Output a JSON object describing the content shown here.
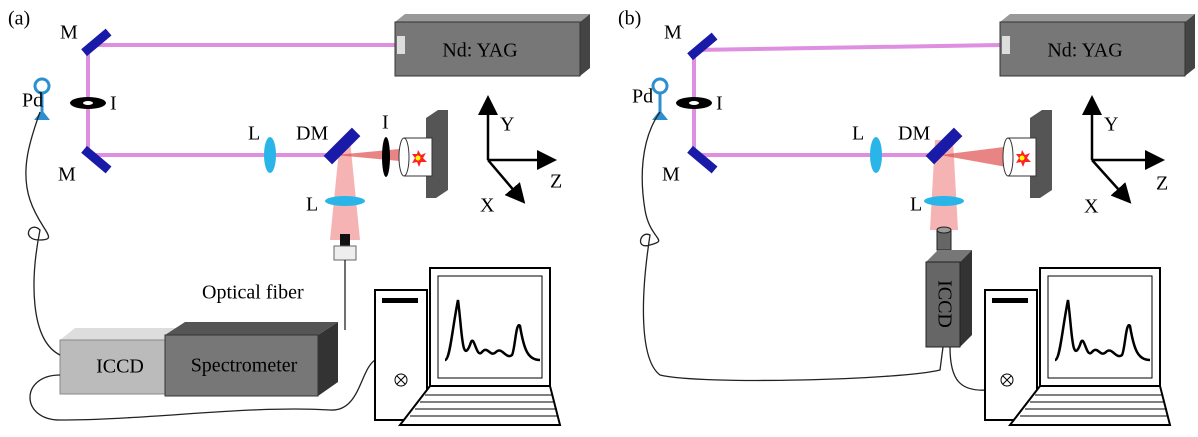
{
  "panels": [
    {
      "panel_label": "(a)",
      "mirror_top": "M",
      "mirror_bottom": "M",
      "photodiode": "Pd",
      "iris": "I",
      "laser": "Nd: YAG",
      "lens": "L",
      "dichroic_mirror": "DM",
      "sample_iris": "I",
      "collection_lens": "L",
      "axis_y": "Y",
      "axis_z": "Z",
      "axis_x": "X",
      "fiber": "Optical fiber",
      "detector": "ICCD",
      "spectrometer": "Spectrometer"
    },
    {
      "panel_label": "(b)",
      "mirror_top": "M",
      "mirror_bottom": "M",
      "photodiode": "Pd",
      "iris": "I",
      "laser": "Nd: YAG",
      "lens": "L",
      "dichroic_mirror": "DM",
      "collection_lens": "L",
      "axis_y": "Y",
      "axis_z": "Z",
      "axis_x": "X",
      "detector": "ICCD"
    }
  ]
}
